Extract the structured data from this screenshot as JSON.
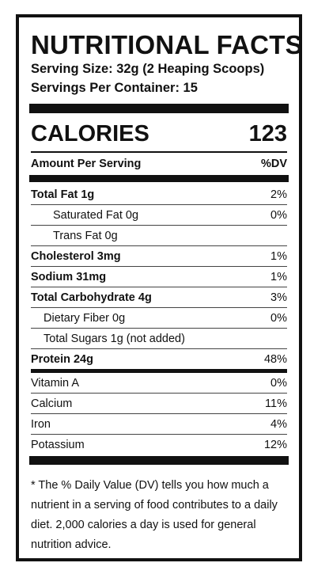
{
  "title": "NUTRITIONAL FACTS",
  "serving_size": "Serving Size: 32g (2 Heaping Scoops)",
  "servings_per_container": "Servings Per Container: 15",
  "calories": {
    "label": "CALORIES",
    "value": "123"
  },
  "amount_header": {
    "label": "Amount Per Serving",
    "dv_label": "%DV"
  },
  "nutrients": [
    {
      "name": "Total Fat 1g",
      "dv": "2%"
    },
    {
      "name": "Saturated Fat  0g",
      "dv": "0%"
    },
    {
      "name": "Trans Fat  0g",
      "dv": ""
    },
    {
      "name": "Cholesterol  3mg",
      "dv": "1%"
    },
    {
      "name": "Sodium  31mg",
      "dv": "1%"
    },
    {
      "name": "Total Carbohydrate  4g",
      "dv": "3%"
    },
    {
      "name": "Dietary Fiber  0g",
      "dv": "0%"
    },
    {
      "name": "Total Sugars  1g (not added)",
      "dv": ""
    },
    {
      "name": "Protein  24g",
      "dv": "48%"
    },
    {
      "name": "Vitamin A",
      "dv": "0%"
    },
    {
      "name": "Calcium",
      "dv": "11%"
    },
    {
      "name": "Iron",
      "dv": "4%"
    },
    {
      "name": "Potassium",
      "dv": "12%"
    }
  ],
  "footnote": "* The % Daily Value (DV) tells you how much a nutrient in a serving of food contributes to a daily diet. 2,000 calories a day is used for general nutrition advice."
}
